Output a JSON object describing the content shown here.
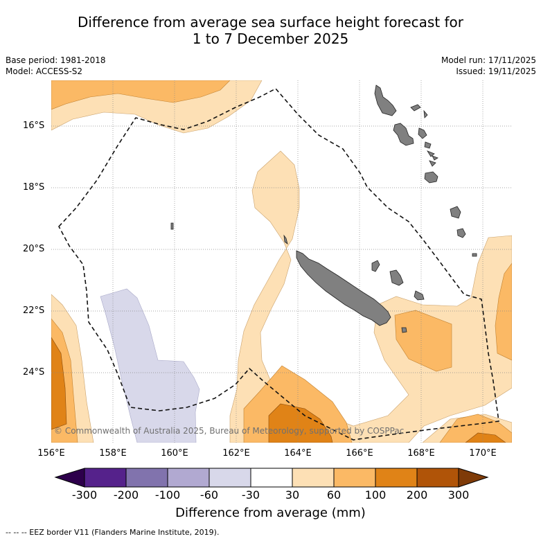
{
  "title": {
    "line1": "Difference from average sea surface height forecast for",
    "line2": "1 to 7 December 2025"
  },
  "meta": {
    "base_period": "Base period: 1981-2018",
    "model": "Model: ACCESS-S2",
    "model_run": "Model run: 17/11/2025",
    "issued": "Issued: 19/11/2025"
  },
  "map": {
    "lat_labels": [
      "16°S",
      "18°S",
      "20°S",
      "22°S",
      "24°S"
    ],
    "lon_labels": [
      "156°E",
      "158°E",
      "160°E",
      "162°E",
      "164°E",
      "166°E",
      "168°E",
      "170°E"
    ],
    "copyright": "© Commonwealth of Australia 2025, Bureau of Meteorology, supported by COSPPac",
    "colors": {
      "land": "#808080",
      "level_60_100": "#fbb965",
      "level_30_60": "#fde0b5",
      "level_100_200": "#e08317",
      "level_neg30_neg60": "#d8d8ea"
    }
  },
  "colorbar": {
    "ticks": [
      "-300",
      "-200",
      "-100",
      "-60",
      "-30",
      "30",
      "60",
      "100",
      "200",
      "300"
    ],
    "colors": [
      "#55228b",
      "#8173ad",
      "#b1a9d1",
      "#d8d8ea",
      "#ffffff",
      "#fde0b5",
      "#fbb965",
      "#e08317",
      "#b05408"
    ],
    "extend_low": "#2d004b",
    "extend_high": "#7f3b08",
    "label": "Difference from average (mm)"
  },
  "footer": "--  --  -- EEZ border V11 (Flanders Marine Institute, 2019)."
}
